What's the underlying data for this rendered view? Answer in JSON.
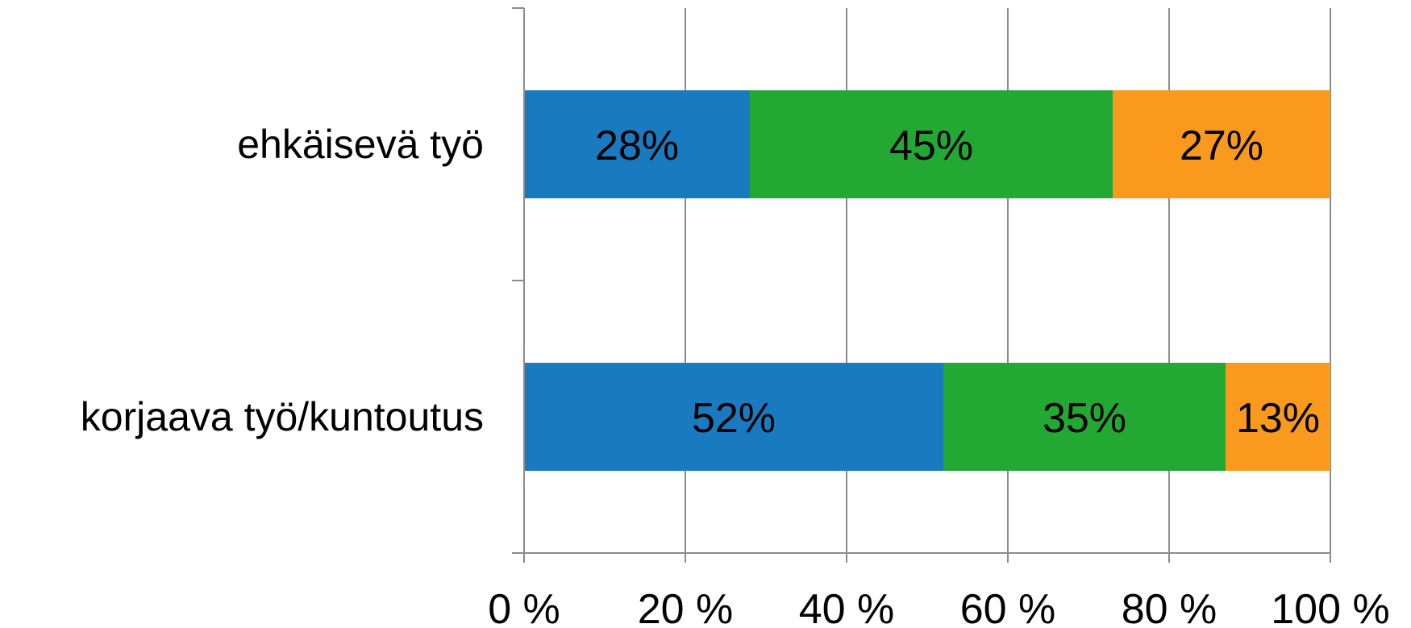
{
  "chart_data": {
    "type": "bar",
    "orientation": "horizontal",
    "stacked": "100%",
    "categories": [
      "ehkäisevä työ",
      "korjaava työ/kuntoutus"
    ],
    "series": [
      {
        "color": "#1a7abf",
        "values": [
          28,
          52
        ]
      },
      {
        "color": "#22a833",
        "values": [
          45,
          35
        ]
      },
      {
        "color": "#f99a1f",
        "values": [
          27,
          13
        ]
      }
    ],
    "data_labels": [
      [
        "28%",
        "45%",
        "27%"
      ],
      [
        "52%",
        "35%",
        "13%"
      ]
    ],
    "x_ticks": [
      "0 %",
      "20 %",
      "40 %",
      "60 %",
      "80 %",
      "100 %"
    ],
    "xlim": [
      0,
      100
    ],
    "grid": "vertical",
    "legend": "none",
    "title": "",
    "xlabel": "",
    "ylabel": ""
  }
}
